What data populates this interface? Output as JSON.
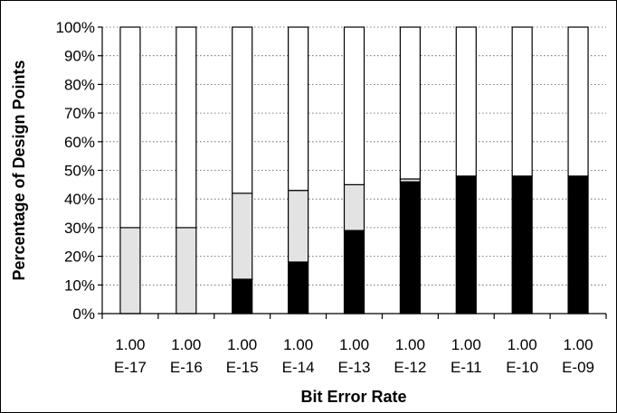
{
  "chart_data": {
    "type": "bar",
    "stacked": true,
    "percent_stacked": true,
    "title": "",
    "xlabel": "Bit Error Rate",
    "ylabel": "Percentage of Design Points",
    "categories": [
      [
        "1.00",
        "E-17"
      ],
      [
        "1.00",
        "E-16"
      ],
      [
        "1.00",
        "E-15"
      ],
      [
        "1.00",
        "E-14"
      ],
      [
        "1.00",
        "E-13"
      ],
      [
        "1.00",
        "E-12"
      ],
      [
        "1.00",
        "E-11"
      ],
      [
        "1.00",
        "E-10"
      ],
      [
        "1.00",
        "E-09"
      ]
    ],
    "series": [
      {
        "color": "#000000",
        "values": [
          0,
          0,
          12,
          18,
          29,
          46,
          48,
          48,
          48
        ]
      },
      {
        "color": "#e3e3e3",
        "values": [
          30,
          30,
          30,
          25,
          16,
          1,
          0,
          0,
          0
        ]
      },
      {
        "color": "#ffffff",
        "values": [
          70,
          70,
          58,
          57,
          55,
          53,
          52,
          52,
          52
        ]
      }
    ],
    "ylim": [
      0,
      100
    ],
    "yticks": [
      "0%",
      "10%",
      "20%",
      "30%",
      "40%",
      "50%",
      "60%",
      "70%",
      "80%",
      "90%",
      "100%"
    ],
    "grid": true,
    "legend": "none"
  }
}
